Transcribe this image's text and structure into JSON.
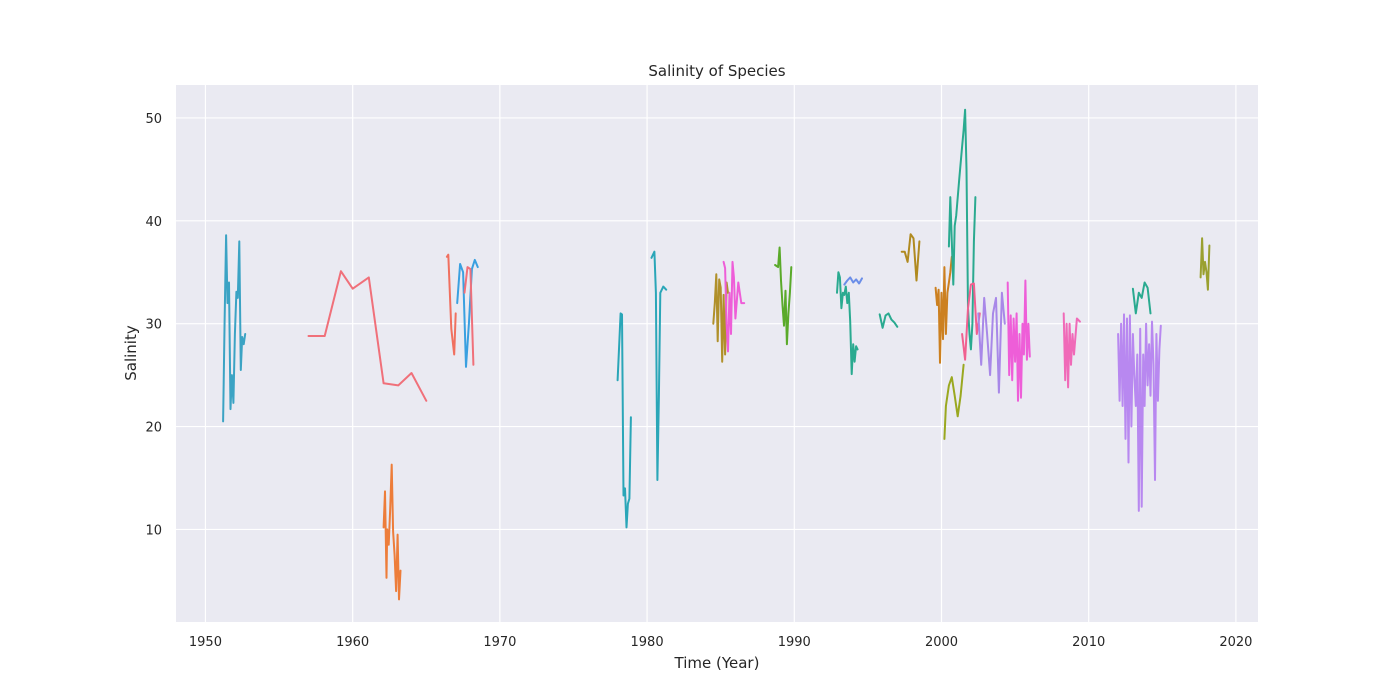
{
  "chart_data": {
    "type": "line",
    "title": "Salinity of Species",
    "xlabel": "Time (Year)",
    "ylabel": "Salinity",
    "xlim": [
      1948,
      2021.5
    ],
    "ylim": [
      1,
      53.2
    ],
    "xticks": [
      1950,
      1960,
      1970,
      1980,
      1990,
      2000,
      2010,
      2020
    ],
    "yticks": [
      10,
      20,
      30,
      40,
      50
    ],
    "grid": true,
    "legend": "none",
    "series": [
      {
        "color": "#3ba3c4",
        "x": [
          1951.2,
          1951.3,
          1951.4,
          1951.5,
          1951.6,
          1951.7,
          1951.8,
          1951.9,
          1952.0,
          1952.1,
          1952.2,
          1952.3,
          1952.4,
          1952.5,
          1952.6,
          1952.7
        ],
        "y": [
          20.5,
          30.2,
          38.6,
          32.0,
          34.0,
          21.7,
          25.0,
          22.3,
          29.0,
          33.1,
          32.5,
          38.0,
          25.5,
          28.7,
          28.0,
          29.0
        ]
      },
      {
        "color": "#f0707a",
        "x": [
          1957.0,
          1958.1,
          1959.2,
          1960.0,
          1961.1,
          1962.1,
          1963.1,
          1964.0,
          1965.0
        ],
        "y": [
          28.8,
          28.8,
          35.1,
          33.4,
          34.5,
          24.2,
          24.0,
          25.2,
          22.5
        ]
      },
      {
        "color": "#ed7d3a",
        "x": [
          1962.1,
          1962.2,
          1962.3,
          1962.35,
          1962.45,
          1962.55,
          1962.65,
          1962.75,
          1962.85,
          1962.95,
          1963.05,
          1963.15,
          1963.25
        ],
        "y": [
          10.2,
          13.7,
          5.3,
          10.0,
          8.5,
          12.0,
          16.3,
          9.8,
          7.5,
          4.0,
          9.5,
          3.2,
          6.0
        ]
      },
      {
        "color": "#f07060",
        "x": [
          1966.4,
          1966.5,
          1966.7,
          1966.9,
          1967.0
        ],
        "y": [
          36.5,
          36.7,
          29.5,
          27.0,
          31.0
        ]
      },
      {
        "color": "#3aa0e0",
        "x": [
          1967.1,
          1967.3,
          1967.5,
          1967.7,
          1967.9,
          1968.1,
          1968.3,
          1968.5
        ],
        "y": [
          32.0,
          35.8,
          35.0,
          25.8,
          30.0,
          35.3,
          36.2,
          35.5
        ]
      },
      {
        "color": "#f0707a",
        "x": [
          1967.6,
          1967.8,
          1968.0,
          1968.2
        ],
        "y": [
          33.0,
          35.5,
          35.3,
          26.0
        ]
      },
      {
        "color": "#2aa6b8",
        "x": [
          1978.0,
          1978.2,
          1978.3,
          1978.4,
          1978.5,
          1978.6,
          1978.7,
          1978.8,
          1978.9
        ],
        "y": [
          24.5,
          31.0,
          30.9,
          13.3,
          14.0,
          10.2,
          12.5,
          13.0,
          20.9
        ]
      },
      {
        "color": "#2aa6b8",
        "x": [
          1980.3,
          1980.5,
          1980.6,
          1980.7,
          1980.8,
          1980.9,
          1981.0,
          1981.1,
          1981.3
        ],
        "y": [
          36.4,
          37.0,
          33.0,
          14.8,
          23.0,
          33.0,
          33.3,
          33.6,
          33.3
        ]
      },
      {
        "color": "#b0902a",
        "x": [
          1984.5,
          1984.6,
          1984.7,
          1984.8,
          1984.9,
          1985.0,
          1985.1,
          1985.2,
          1985.3,
          1985.4,
          1985.5
        ],
        "y": [
          30.0,
          32.0,
          34.8,
          28.3,
          34.3,
          33.5,
          26.3,
          32.8,
          27.0,
          34.0,
          33.0
        ]
      },
      {
        "color": "#ee5ed8",
        "x": [
          1985.2,
          1985.3,
          1985.4,
          1985.5,
          1985.6,
          1985.7,
          1985.8,
          1985.9,
          1986.0,
          1986.2,
          1986.4,
          1986.6
        ],
        "y": [
          36.0,
          35.4,
          30.0,
          27.3,
          33.0,
          29.0,
          36.0,
          34.5,
          30.5,
          34.0,
          32.0,
          32.0
        ]
      },
      {
        "color": "#5aaa2a",
        "x": [
          1988.7,
          1988.9,
          1989.0,
          1989.1,
          1989.2,
          1989.3,
          1989.4,
          1989.5,
          1989.6,
          1989.7,
          1989.8
        ],
        "y": [
          35.7,
          35.5,
          37.4,
          34.2,
          31.8,
          29.8,
          33.2,
          28.0,
          31.0,
          33.0,
          35.5
        ]
      },
      {
        "color": "#2aaa90",
        "x": [
          1992.9,
          1993.0,
          1993.1,
          1993.2,
          1993.3,
          1993.4,
          1993.5,
          1993.6,
          1993.7,
          1993.8,
          1993.9,
          1994.0,
          1994.1,
          1994.2,
          1994.3
        ],
        "y": [
          33.0,
          35.0,
          34.5,
          31.5,
          33.0,
          32.8,
          33.6,
          32.0,
          33.0,
          30.2,
          25.1,
          28.0,
          26.3,
          27.8,
          27.5
        ]
      },
      {
        "color": "#6b8ee8",
        "x": [
          1993.4,
          1993.6,
          1993.8,
          1994.0,
          1994.2,
          1994.4,
          1994.6
        ],
        "y": [
          33.8,
          34.2,
          34.5,
          34.0,
          34.3,
          33.9,
          34.4
        ]
      },
      {
        "color": "#2aaa90",
        "x": [
          1995.8,
          1996.0,
          1996.2,
          1996.4,
          1996.6,
          1996.8,
          1997.0
        ],
        "y": [
          30.9,
          29.6,
          30.8,
          31.0,
          30.4,
          30.1,
          29.7
        ]
      },
      {
        "color": "#b08a20",
        "x": [
          1997.3,
          1997.5,
          1997.7,
          1997.9,
          1998.1,
          1998.3,
          1998.5
        ],
        "y": [
          37.0,
          37.0,
          36.0,
          38.7,
          38.3,
          34.2,
          38.0
        ]
      },
      {
        "color": "#cc8020",
        "x": [
          1999.6,
          1999.7,
          1999.8,
          1999.9,
          2000.0,
          2000.1,
          2000.2,
          2000.3,
          2000.4,
          2000.5,
          2000.6,
          2000.7
        ],
        "y": [
          33.5,
          31.8,
          33.3,
          26.2,
          33.0,
          28.5,
          35.5,
          29.0,
          33.0,
          34.0,
          35.0,
          36.5
        ]
      },
      {
        "color": "#9aa820",
        "x": [
          2000.2,
          2000.3,
          2000.5,
          2000.7,
          2000.9,
          2001.1,
          2001.3,
          2001.5
        ],
        "y": [
          18.8,
          22.0,
          24.0,
          24.8,
          23.0,
          21.0,
          23.0,
          26.0
        ]
      },
      {
        "color": "#2aaa90",
        "x": [
          2000.5,
          2000.6,
          2000.7,
          2000.8,
          2000.9,
          2001.0,
          2001.2,
          2001.4,
          2001.5,
          2001.6,
          2001.7,
          2001.8,
          2001.9,
          2002.0,
          2002.1,
          2002.2,
          2002.3
        ],
        "y": [
          37.5,
          42.3,
          38.0,
          33.8,
          39.5,
          40.5,
          44.0,
          47.2,
          48.8,
          50.8,
          45.0,
          31.5,
          29.0,
          27.5,
          30.0,
          38.0,
          42.3
        ]
      },
      {
        "color": "#f06090",
        "x": [
          2001.4,
          2001.6,
          2001.8,
          2002.0,
          2002.2,
          2002.4,
          2002.6
        ],
        "y": [
          29.0,
          26.5,
          31.5,
          33.8,
          33.9,
          29.0,
          31.0
        ]
      },
      {
        "color": "#a888e8",
        "x": [
          2002.5,
          2002.7,
          2002.9,
          2003.1,
          2003.3,
          2003.5,
          2003.7,
          2003.9,
          2004.1,
          2004.3
        ],
        "y": [
          31.0,
          26.0,
          32.5,
          29.0,
          25.0,
          31.0,
          32.5,
          23.3,
          33.0,
          30.0
        ]
      },
      {
        "color": "#ee5ed8",
        "x": [
          2004.5,
          2004.6,
          2004.7,
          2004.8,
          2004.9,
          2005.0,
          2005.1,
          2005.2,
          2005.3,
          2005.4,
          2005.5,
          2005.6,
          2005.7,
          2005.8,
          2005.9,
          2006.0
        ],
        "y": [
          34.0,
          25.0,
          30.8,
          24.5,
          30.5,
          26.3,
          31.0,
          22.5,
          29.0,
          22.8,
          30.0,
          27.0,
          34.2,
          26.5,
          30.0,
          26.8
        ]
      },
      {
        "color": "#f06ab8",
        "x": [
          2008.3,
          2008.4,
          2008.5,
          2008.6,
          2008.7,
          2008.8,
          2008.9,
          2009.0,
          2009.2,
          2009.4
        ],
        "y": [
          31.0,
          24.5,
          30.0,
          23.8,
          30.0,
          26.0,
          29.0,
          27.0,
          30.5,
          30.2
        ]
      },
      {
        "color": "#2aaa90",
        "x": [
          2013.0,
          2013.2,
          2013.4,
          2013.6,
          2013.8,
          2014.0,
          2014.2
        ],
        "y": [
          33.4,
          31.0,
          33.0,
          32.5,
          34.0,
          33.5,
          31.0
        ]
      },
      {
        "color": "#b888f0",
        "x": [
          2012.0,
          2012.1,
          2012.2,
          2012.3,
          2012.4,
          2012.5,
          2012.6,
          2012.7,
          2012.8,
          2012.9,
          2013.0,
          2013.1,
          2013.2,
          2013.3,
          2013.4,
          2013.5,
          2013.6,
          2013.7,
          2013.8,
          2013.9,
          2014.0,
          2014.1,
          2014.2,
          2014.3,
          2014.4,
          2014.5,
          2014.6,
          2014.7,
          2014.8,
          2014.9
        ],
        "y": [
          29.0,
          22.5,
          30.0,
          22.0,
          30.9,
          18.8,
          30.5,
          16.5,
          30.8,
          20.0,
          29.0,
          25.0,
          22.0,
          27.0,
          11.8,
          29.5,
          12.2,
          27.0,
          22.0,
          30.0,
          24.0,
          28.0,
          23.0,
          30.2,
          26.0,
          14.8,
          29.0,
          22.5,
          27.5,
          29.8
        ]
      },
      {
        "color": "#9aa030",
        "x": [
          2017.6,
          2017.7,
          2017.8,
          2017.9,
          2018.0,
          2018.1,
          2018.2
        ],
        "y": [
          34.5,
          38.3,
          34.8,
          36.0,
          35.0,
          33.3,
          37.6
        ]
      }
    ]
  }
}
